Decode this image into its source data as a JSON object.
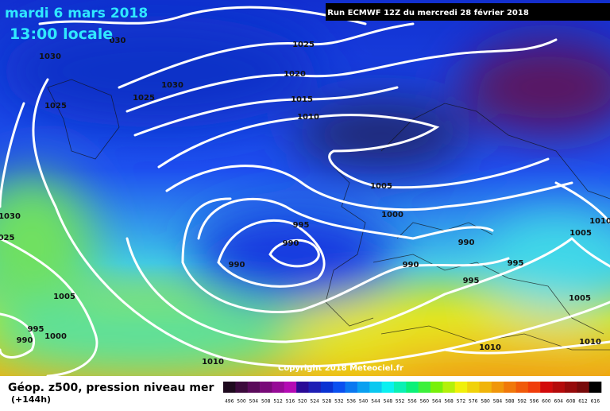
{
  "header": {
    "date": "mardi 6 mars 2018",
    "time": "13:00 locale",
    "run": "Run ECMWF 12Z du mercredi 28 février 2018"
  },
  "copyright": "Copyright 2018 Meteociel.fr",
  "footer": {
    "title": "Géop. z500, pression niveau mer",
    "lead": "(+144h)"
  },
  "isobar_labels": [
    "030",
    "1030",
    "1025",
    "1030",
    "1025",
    "1025",
    "1020",
    "1015",
    "1010",
    "1005",
    "1000",
    "995",
    "990",
    "990",
    "990",
    "990",
    "995",
    "995",
    "1030",
    "025",
    "1005",
    "995",
    "1000",
    "990",
    "1010",
    "1010",
    "1010",
    "1005",
    "1005",
    "1010"
  ],
  "legend": {
    "items": [
      {
        "value": 496,
        "color": "#1e0a1e"
      },
      {
        "value": 500,
        "color": "#3c0a3c"
      },
      {
        "value": 504,
        "color": "#5a0a5a"
      },
      {
        "value": 508,
        "color": "#780a78"
      },
      {
        "value": 512,
        "color": "#960a96"
      },
      {
        "value": 516,
        "color": "#b40ab4"
      },
      {
        "value": 520,
        "color": "#2a0a96"
      },
      {
        "value": 524,
        "color": "#1e1eb4"
      },
      {
        "value": 528,
        "color": "#0a32d2"
      },
      {
        "value": 532,
        "color": "#0a50f0"
      },
      {
        "value": 536,
        "color": "#0a78f0"
      },
      {
        "value": 540,
        "color": "#0aa0f0"
      },
      {
        "value": 544,
        "color": "#0ac8f0"
      },
      {
        "value": 548,
        "color": "#0af0f0"
      },
      {
        "value": 552,
        "color": "#0af0b4"
      },
      {
        "value": 556,
        "color": "#0af078"
      },
      {
        "value": 560,
        "color": "#3cf03c"
      },
      {
        "value": 564,
        "color": "#78f00a"
      },
      {
        "value": 568,
        "color": "#b4f00a"
      },
      {
        "value": 572,
        "color": "#f0f00a"
      },
      {
        "value": 576,
        "color": "#f0d20a"
      },
      {
        "value": 580,
        "color": "#f0b40a"
      },
      {
        "value": 584,
        "color": "#f0960a"
      },
      {
        "value": 588,
        "color": "#f0780a"
      },
      {
        "value": 592,
        "color": "#f05a0a"
      },
      {
        "value": 596,
        "color": "#f03c0a"
      },
      {
        "value": 600,
        "color": "#d20a0a"
      },
      {
        "value": 604,
        "color": "#b40a0a"
      },
      {
        "value": 608,
        "color": "#960a0a"
      },
      {
        "value": 612,
        "color": "#780a0a"
      },
      {
        "value": 616,
        "color": "#000000"
      }
    ]
  }
}
